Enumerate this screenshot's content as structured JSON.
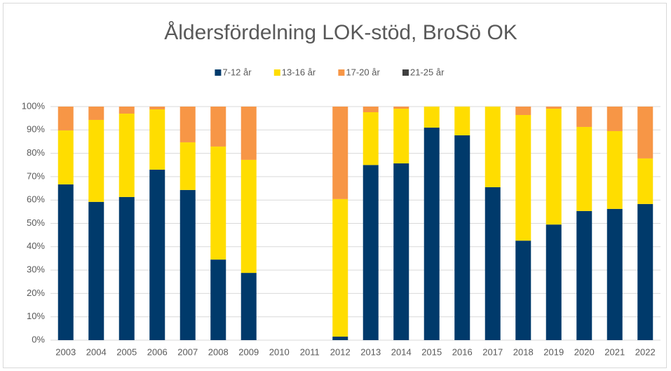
{
  "chart_data": {
    "type": "stacked_bar",
    "title": "Åldersfördelning LOK-stöd, BroSö OK",
    "categories": [
      "2003",
      "2004",
      "2005",
      "2006",
      "2007",
      "2008",
      "2009",
      "2010",
      "2011",
      "2012",
      "2013",
      "2014",
      "2015",
      "2016",
      "2017",
      "2018",
      "2019",
      "2020",
      "2021",
      "2022"
    ],
    "series": [
      {
        "name": "7-12 år",
        "color": "#003a6b",
        "values": [
          66.7,
          59.2,
          61.3,
          73.0,
          64.3,
          34.5,
          28.8,
          null,
          null,
          1.5,
          75.0,
          75.7,
          91.0,
          87.7,
          65.5,
          42.6,
          49.5,
          55.3,
          56.2,
          58.3
        ]
      },
      {
        "name": "13-16 år",
        "color": "#ffdd00",
        "values": [
          23.1,
          35.1,
          35.7,
          25.8,
          20.4,
          48.4,
          48.4,
          null,
          null,
          58.9,
          22.6,
          23.4,
          9.0,
          12.3,
          34.5,
          53.8,
          49.6,
          36.0,
          33.3,
          19.5
        ]
      },
      {
        "name": "17-20 år",
        "color": "#f79646",
        "values": [
          10.2,
          5.7,
          3.0,
          1.2,
          15.3,
          17.1,
          22.8,
          null,
          null,
          39.6,
          2.4,
          0.9,
          0,
          0,
          0,
          3.6,
          0.9,
          8.7,
          10.5,
          22.2
        ]
      },
      {
        "name": "21-25 år",
        "color": "#404040",
        "values": [
          0,
          0,
          0,
          0,
          0,
          0,
          0,
          null,
          null,
          0,
          0,
          0,
          0,
          0,
          0,
          0,
          0,
          0,
          0,
          0
        ]
      }
    ],
    "ylim": [
      0,
      100
    ],
    "yticks": [
      {
        "value": 0,
        "label": "0%"
      },
      {
        "value": 10,
        "label": "10%"
      },
      {
        "value": 20,
        "label": "20%"
      },
      {
        "value": 30,
        "label": "30%"
      },
      {
        "value": 40,
        "label": "40%"
      },
      {
        "value": 50,
        "label": "50%"
      },
      {
        "value": 60,
        "label": "60%"
      },
      {
        "value": 70,
        "label": "70%"
      },
      {
        "value": 80,
        "label": "80%"
      },
      {
        "value": 90,
        "label": "90%"
      },
      {
        "value": 100,
        "label": "100%"
      }
    ],
    "grid": true,
    "legend": "top"
  }
}
